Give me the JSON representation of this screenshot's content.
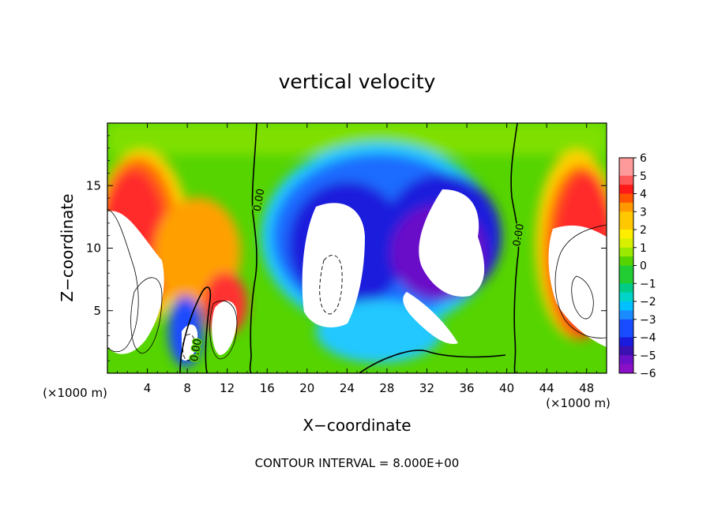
{
  "chart_data": {
    "type": "heatmap",
    "title": "vertical velocity",
    "xlabel": "X−coordinate",
    "ylabel": "Z−coordinate",
    "x_unit_left": "(×1000 m)",
    "x_unit_right": "(×1000 m)",
    "footer": "CONTOUR INTERVAL = 8.000E+00",
    "xlim": [
      0,
      50
    ],
    "ylim": [
      0,
      20
    ],
    "x_ticks": [
      4,
      8,
      12,
      16,
      20,
      24,
      28,
      32,
      36,
      40,
      44,
      48
    ],
    "x_tick_labels": [
      "4",
      "8",
      "12",
      "16",
      "20",
      "24",
      "28",
      "32",
      "36",
      "40",
      "44",
      "48"
    ],
    "y_ticks": [
      5,
      10,
      15
    ],
    "y_tick_labels": [
      "5",
      "10",
      "15"
    ],
    "colorbar": {
      "range": [
        -6,
        6
      ],
      "labels": [
        "6",
        "5",
        "4",
        "3",
        "2",
        "1",
        "0",
        "−1",
        "−2",
        "−3",
        "−4",
        "−5",
        "−6"
      ],
      "values": [
        6,
        5,
        4,
        3,
        2,
        1,
        0,
        -1,
        -2,
        -3,
        -4,
        -5,
        -6
      ]
    },
    "contour_labels": [
      {
        "text": "0.00",
        "x": 15.5,
        "z": 13.8
      },
      {
        "text": "0.00",
        "x": 41.5,
        "z": 11.0
      },
      {
        "text": "0.00",
        "x": 9.2,
        "z": 1.8
      }
    ]
  }
}
